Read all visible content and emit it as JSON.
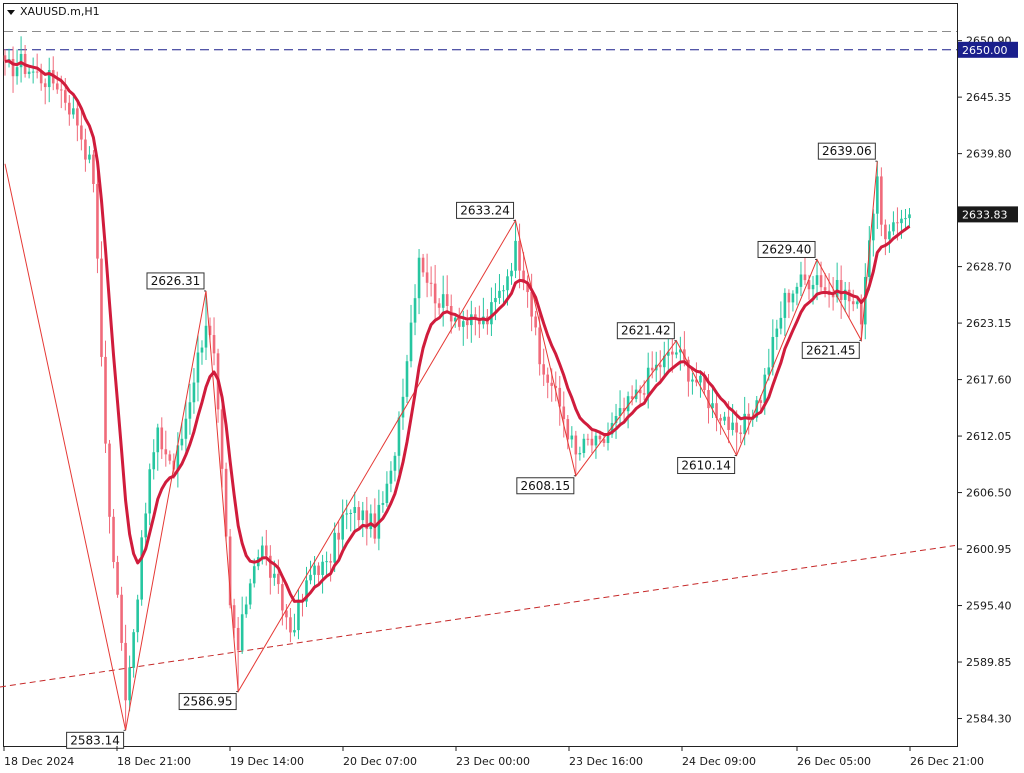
{
  "window": {
    "symbol_label": "XAUUSD.m,H1",
    "menu_icon": "triangle-down-icon"
  },
  "chart_data": {
    "type": "candlestick",
    "symbol": "XAUUSD.m",
    "timeframe": "H1",
    "y_range": [
      2581.6,
      2654.5
    ],
    "x_tick_labels": [
      "18 Dec 2024",
      "18 Dec 21:00",
      "19 Dec 14:00",
      "20 Dec 07:00",
      "23 Dec 00:00",
      "23 Dec 16:00",
      "24 Dec 09:00",
      "26 Dec 05:00",
      "26 Dec 21:00"
    ],
    "y_tick_labels": [
      "2650.90",
      "2645.35",
      "2639.80",
      "2628.70",
      "2623.15",
      "2617.60",
      "2612.05",
      "2606.50",
      "2600.95",
      "2595.40",
      "2589.85",
      "2584.30"
    ],
    "y_tick_values": [
      2650.9,
      2645.35,
      2639.8,
      2628.7,
      2623.15,
      2617.6,
      2612.05,
      2606.5,
      2600.95,
      2595.4,
      2589.85,
      2584.3
    ],
    "price_labels": [
      {
        "text": "2650.00",
        "value": 2650.0,
        "style": "level"
      },
      {
        "text": "2633.83",
        "value": 2633.83,
        "style": "current"
      }
    ],
    "horizontal_lines": [
      {
        "value": 2650.0,
        "color": "#1a1f8c",
        "style": "dashed"
      },
      {
        "value": 2651.8,
        "color": "#8c8c8c",
        "style": "dashed"
      }
    ],
    "trend_line": {
      "from": [
        0,
        2587.4
      ],
      "to": [
        955,
        2601.3
      ],
      "color": "#c62828",
      "style": "dashed"
    },
    "zigzag": [
      {
        "bar": 0,
        "price": 2638.8
      },
      {
        "bar": 30,
        "price": 2583.14
      },
      {
        "bar": 50,
        "price": 2626.31
      },
      {
        "bar": 58,
        "price": 2586.95
      },
      {
        "bar": 127,
        "price": 2633.24
      },
      {
        "bar": 142,
        "price": 2608.15
      },
      {
        "bar": 167,
        "price": 2621.42
      },
      {
        "bar": 182,
        "price": 2610.14
      },
      {
        "bar": 202,
        "price": 2629.4
      },
      {
        "bar": 213,
        "price": 2621.45
      },
      {
        "bar": 217,
        "price": 2639.06
      }
    ],
    "zigzag_labels": [
      {
        "text": "2583.14",
        "bar": 30,
        "price": 2583.14,
        "anchor": "below-left"
      },
      {
        "text": "2626.31",
        "bar": 50,
        "price": 2626.31,
        "anchor": "above-left"
      },
      {
        "text": "2586.95",
        "bar": 58,
        "price": 2586.95,
        "anchor": "below-left"
      },
      {
        "text": "2633.24",
        "bar": 127,
        "price": 2633.24,
        "anchor": "above-left"
      },
      {
        "text": "2608.15",
        "bar": 142,
        "price": 2608.15,
        "anchor": "below-left"
      },
      {
        "text": "2621.42",
        "bar": 167,
        "price": 2621.42,
        "anchor": "above-left"
      },
      {
        "text": "2610.14",
        "bar": 182,
        "price": 2610.14,
        "anchor": "below-left"
      },
      {
        "text": "2629.40",
        "bar": 202,
        "price": 2629.4,
        "anchor": "above-left"
      },
      {
        "text": "2621.45",
        "bar": 213,
        "price": 2621.45,
        "anchor": "below-left"
      },
      {
        "text": "2639.06",
        "bar": 217,
        "price": 2639.06,
        "anchor": "above-left"
      }
    ],
    "moving_average_color": "#d01c3c",
    "colors": {
      "bull": "#26c6a0",
      "bear": "#f06a7a",
      "zigzag": "#e53935",
      "grid_text": "#1a1a1a"
    },
    "anchors": [
      [
        0,
        2648.0
      ],
      [
        4,
        2648.7
      ],
      [
        9,
        2647.3
      ],
      [
        13,
        2646.8
      ],
      [
        18,
        2643.0
      ],
      [
        22,
        2637.5
      ],
      [
        24,
        2620.0
      ],
      [
        26,
        2604.0
      ],
      [
        28,
        2596.0
      ],
      [
        30,
        2587.0
      ],
      [
        32,
        2593.0
      ],
      [
        34,
        2601.0
      ],
      [
        36,
        2608.5
      ],
      [
        38,
        2612.0
      ],
      [
        42,
        2609.0
      ],
      [
        44,
        2612.0
      ],
      [
        47,
        2618.0
      ],
      [
        50,
        2623.5
      ],
      [
        52,
        2619.5
      ],
      [
        54,
        2608.0
      ],
      [
        56,
        2595.0
      ],
      [
        58,
        2591.0
      ],
      [
        60,
        2596.0
      ],
      [
        62,
        2600.0
      ],
      [
        64,
        2601.0
      ],
      [
        68,
        2596.5
      ],
      [
        71,
        2593.0
      ],
      [
        74,
        2596.0
      ],
      [
        77,
        2599.5
      ],
      [
        80,
        2599.0
      ],
      [
        84,
        2604.0
      ],
      [
        88,
        2604.5
      ],
      [
        92,
        2603.0
      ],
      [
        96,
        2608.0
      ],
      [
        100,
        2620.0
      ],
      [
        103,
        2630.0
      ],
      [
        106,
        2626.5
      ],
      [
        109,
        2625.0
      ],
      [
        112,
        2624.0
      ],
      [
        116,
        2623.0
      ],
      [
        120,
        2623.5
      ],
      [
        124,
        2627.0
      ],
      [
        127,
        2630.5
      ],
      [
        130,
        2627.0
      ],
      [
        133,
        2619.0
      ],
      [
        136,
        2617.0
      ],
      [
        139,
        2614.0
      ],
      [
        142,
        2610.0
      ],
      [
        145,
        2611.5
      ],
      [
        148,
        2611.0
      ],
      [
        151,
        2613.0
      ],
      [
        155,
        2615.0
      ],
      [
        158,
        2616.5
      ],
      [
        161,
        2618.5
      ],
      [
        164,
        2619.5
      ],
      [
        167,
        2620.5
      ],
      [
        170,
        2618.5
      ],
      [
        173,
        2617.0
      ],
      [
        176,
        2615.0
      ],
      [
        179,
        2614.0
      ],
      [
        182,
        2611.5
      ],
      [
        185,
        2614.0
      ],
      [
        188,
        2616.0
      ],
      [
        191,
        2621.0
      ],
      [
        194,
        2625.5
      ],
      [
        197,
        2627.0
      ],
      [
        200,
        2627.5
      ],
      [
        202,
        2628.0
      ],
      [
        205,
        2626.0
      ],
      [
        208,
        2626.5
      ],
      [
        211,
        2625.0
      ],
      [
        213,
        2624.0
      ],
      [
        215,
        2632.0
      ],
      [
        217,
        2636.5
      ],
      [
        219,
        2631.0
      ],
      [
        221,
        2632.0
      ],
      [
        223,
        2634.0
      ],
      [
        225,
        2633.83
      ]
    ]
  }
}
